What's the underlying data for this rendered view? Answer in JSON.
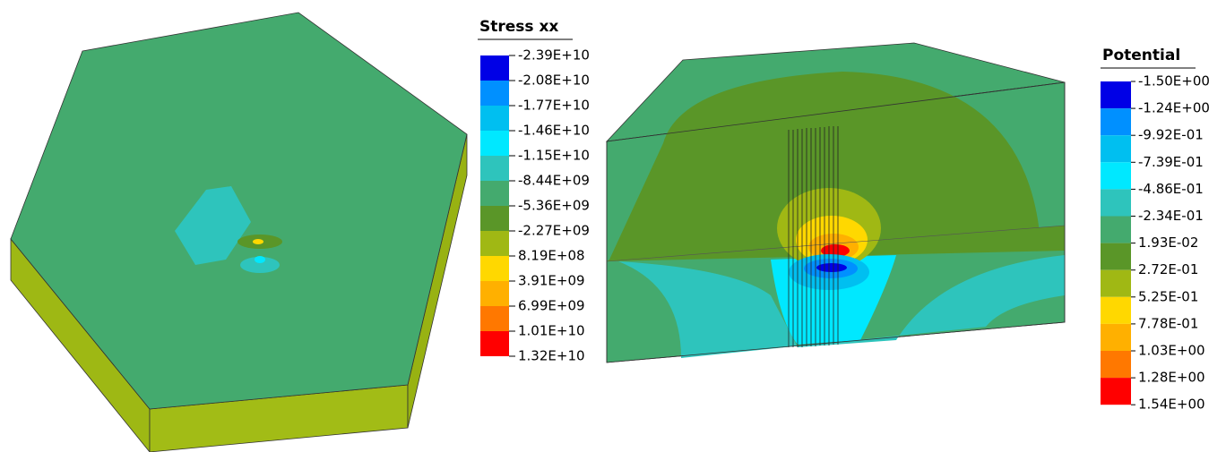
{
  "panels": [
    {
      "legend": {
        "title": "Stress xx",
        "labels": [
          "-2.39E+10",
          "-2.08E+10",
          "-1.77E+10",
          "-1.46E+10",
          "-1.15E+10",
          "-8.44E+09",
          "-5.36E+09",
          "-2.27E+09",
          "8.19E+08",
          "3.91E+09",
          "6.99E+09",
          "1.01E+10",
          "1.32E+10"
        ],
        "colors": [
          "#0000e6",
          "#0090ff",
          "#00bff0",
          "#00e8ff",
          "#2ec4bc",
          "#44aa6e",
          "#5a9628",
          "#a0b814",
          "#ffd800",
          "#ffb000",
          "#ff7800",
          "#ff0000"
        ]
      }
    },
    {
      "legend": {
        "title": "Potential",
        "labels": [
          "-1.50E+00",
          "-1.24E+00",
          "-9.92E-01",
          "-7.39E-01",
          "-4.86E-01",
          "-2.34E-01",
          "1.93E-02",
          "2.72E-01",
          "5.25E-01",
          "7.78E-01",
          "1.03E+00",
          "1.28E+00",
          "1.54E+00"
        ],
        "colors": [
          "#0000e6",
          "#0090ff",
          "#00bff0",
          "#00e8ff",
          "#2ec4bc",
          "#44aa6e",
          "#5a9628",
          "#a0b814",
          "#ffd800",
          "#ffb000",
          "#ff7800",
          "#ff0000"
        ]
      }
    }
  ]
}
